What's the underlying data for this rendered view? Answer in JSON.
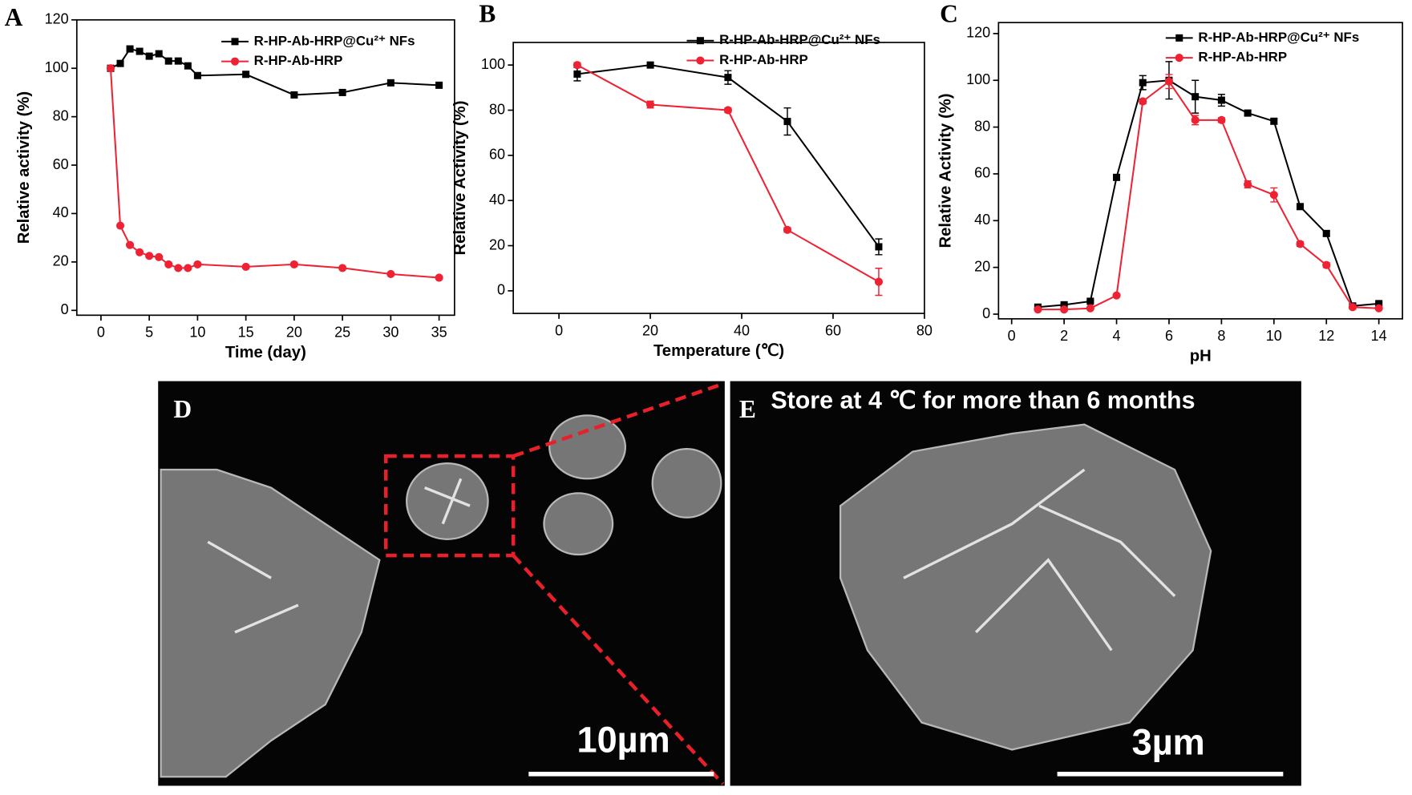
{
  "chart_data": [
    {
      "type": "line",
      "label": "A",
      "xlabel": "Time (day)",
      "ylabel": "Relative activity (%)",
      "x": [
        1,
        2,
        3,
        4,
        5,
        6,
        7,
        8,
        9,
        10,
        15,
        20,
        25,
        30,
        35
      ],
      "series": [
        {
          "name": "R-HP-Ab-HRP@Cu²⁺ NFs",
          "color": "#000000",
          "marker": "square",
          "values": [
            100,
            102,
            108,
            107,
            105,
            106,
            103,
            103,
            101,
            97,
            97.5,
            89,
            90,
            94,
            93
          ]
        },
        {
          "name": "R-HP-Ab-HRP",
          "color": "#ee2233",
          "marker": "circle",
          "values": [
            100,
            35,
            27,
            24,
            22.5,
            22,
            19,
            17.5,
            17.5,
            19,
            18,
            19,
            17.5,
            15,
            13.5
          ]
        }
      ],
      "xlim": [
        -2.5,
        36.6
      ],
      "xticks": [
        0,
        5,
        10,
        15,
        20,
        25,
        30,
        35
      ],
      "ylim": [
        -2,
        120
      ],
      "yticks": [
        0,
        20,
        40,
        60,
        80,
        100,
        120
      ],
      "legend": "upper right"
    },
    {
      "type": "line",
      "label": "B",
      "xlabel": "Temperature (℃)",
      "ylabel": "Relative Activity (%)",
      "x": [
        4,
        20,
        37,
        50,
        70
      ],
      "series": [
        {
          "name": "R-HP-Ab-HRP@Cu²⁺ NFs",
          "color": "#000000",
          "marker": "square",
          "values": [
            96,
            100,
            94.5,
            75,
            19.5
          ],
          "errors": [
            3,
            1,
            3,
            6,
            3.5
          ]
        },
        {
          "name": "R-HP-Ab-HRP",
          "color": "#ee2233",
          "marker": "circle",
          "values": [
            100,
            82.5,
            80,
            27,
            4
          ],
          "errors": [
            1,
            1.5,
            1,
            1,
            6
          ]
        }
      ],
      "xlim": [
        -10,
        80
      ],
      "xticks": [
        0,
        20,
        40,
        60,
        80
      ],
      "ylim": [
        -10,
        110
      ],
      "yticks": [
        0,
        20,
        40,
        60,
        80,
        100
      ],
      "legend": "upper right"
    },
    {
      "type": "line",
      "label": "C",
      "xlabel": "pH",
      "ylabel": "Relative Activity (%)",
      "x": [
        1,
        2,
        3,
        4,
        5,
        6,
        7,
        8,
        9,
        10,
        11,
        12,
        13,
        14
      ],
      "series": [
        {
          "name": "R-HP-Ab-HRP@Cu²⁺ NFs",
          "color": "#000000",
          "marker": "square",
          "values": [
            3,
            4,
            5.5,
            58.5,
            99,
            100,
            93,
            91.5,
            86,
            82.5,
            46,
            34.5,
            3.5,
            4.5
          ],
          "errors": [
            0.5,
            0.5,
            0.5,
            1,
            3,
            8,
            7,
            2.5,
            1,
            1,
            1,
            1,
            0.5,
            0.5
          ]
        },
        {
          "name": "R-HP-Ab-HRP",
          "color": "#ee2233",
          "marker": "circle",
          "values": [
            2,
            2,
            2.5,
            8,
            91,
            99.5,
            83,
            83,
            55.5,
            51,
            30,
            21,
            3,
            2.5
          ],
          "errors": [
            0.5,
            0.5,
            0.5,
            0.5,
            1,
            3,
            2,
            1,
            1.5,
            3,
            1,
            1,
            0.5,
            0.5
          ]
        }
      ],
      "xlim": [
        -0.5,
        14.9
      ],
      "xticks": [
        0,
        2,
        4,
        6,
        8,
        10,
        12,
        14
      ],
      "ylim": [
        -2,
        124.7
      ],
      "yticks": [
        0,
        20,
        40,
        60,
        80,
        100,
        120
      ],
      "legend": "upper right"
    }
  ],
  "images": [
    {
      "label": "D",
      "scale_bar": "10µm"
    },
    {
      "label": "E",
      "caption": "Store at 4 ℃ for more than 6 months",
      "scale_bar": "3µm"
    }
  ]
}
